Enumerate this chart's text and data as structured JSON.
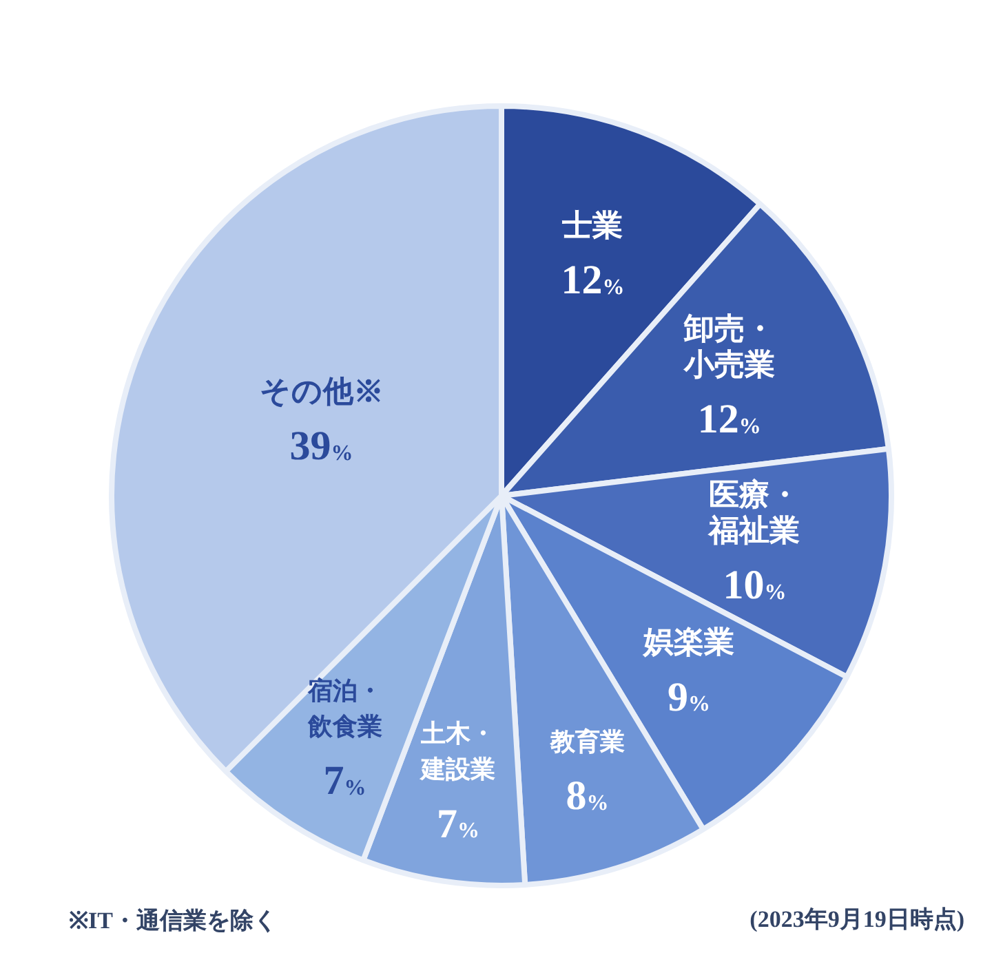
{
  "chart_data": {
    "type": "pie",
    "categories": [
      "士業",
      "卸売・小売業",
      "医療・福祉業",
      "娯楽業",
      "教育業",
      "土木・建設業",
      "宿泊・飲食業",
      "その他※"
    ],
    "values": [
      12,
      12,
      10,
      9,
      8,
      7,
      7,
      39
    ],
    "value_labels": [
      "12%",
      "12%",
      "10%",
      "9%",
      "8%",
      "7%",
      "7%",
      "39%"
    ],
    "colors": [
      "#2b4a9b",
      "#3a5cad",
      "#4a6dbd",
      "#5b82cd",
      "#6f95d7",
      "#80a4dd",
      "#93b4e3",
      "#b5c9eb"
    ],
    "legend": false,
    "annotations": [
      "※IT・通信業を除く",
      "(2023年9月19日時点)"
    ]
  }
}
